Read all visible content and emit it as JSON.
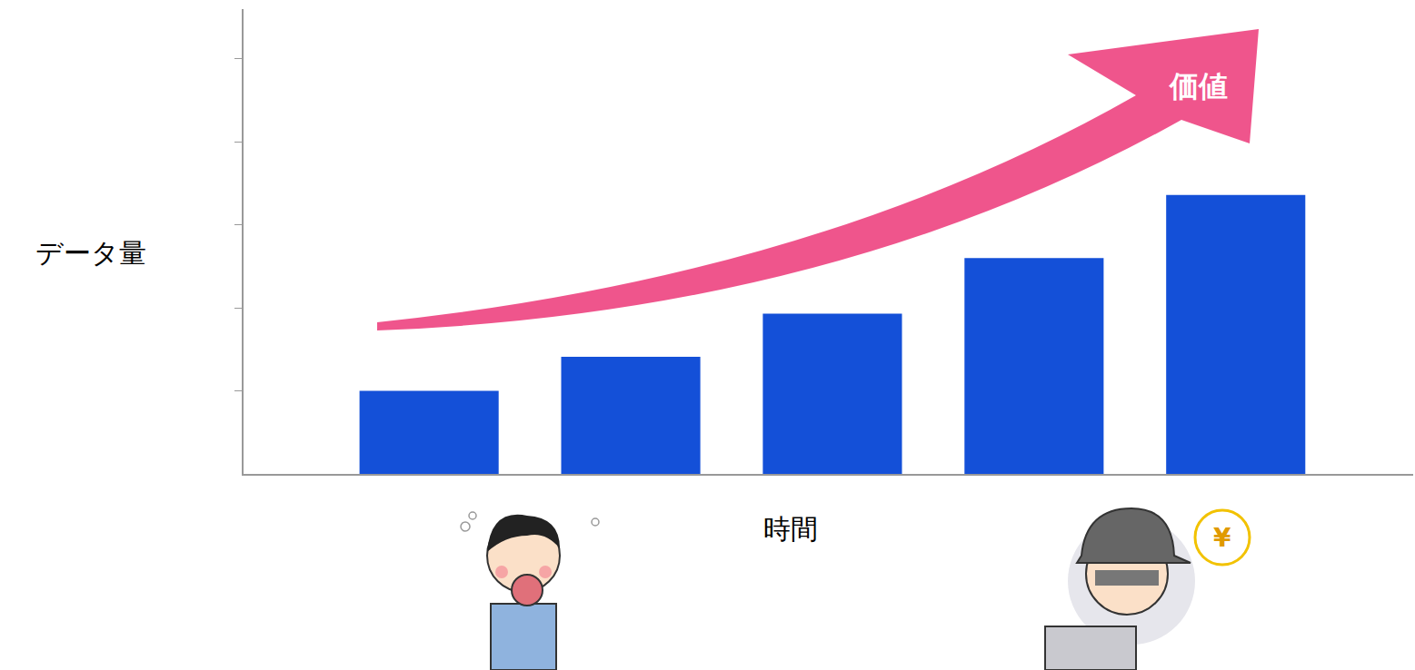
{
  "chart_data": {
    "type": "bar",
    "x_label": "時間",
    "y_label": "データ量",
    "categories": [
      null,
      null,
      null,
      null,
      null
    ],
    "values": [
      1.0,
      1.41,
      1.93,
      2.6,
      3.36
    ],
    "color": "#1450d8",
    "ylim": [
      0,
      5.6
    ],
    "yticks": [
      1,
      2,
      3,
      4,
      5
    ],
    "grid": false,
    "tick_labels": false,
    "annotations": [
      {
        "text": "価値"
      },
      {
        "text": "¥"
      }
    ]
  }
}
